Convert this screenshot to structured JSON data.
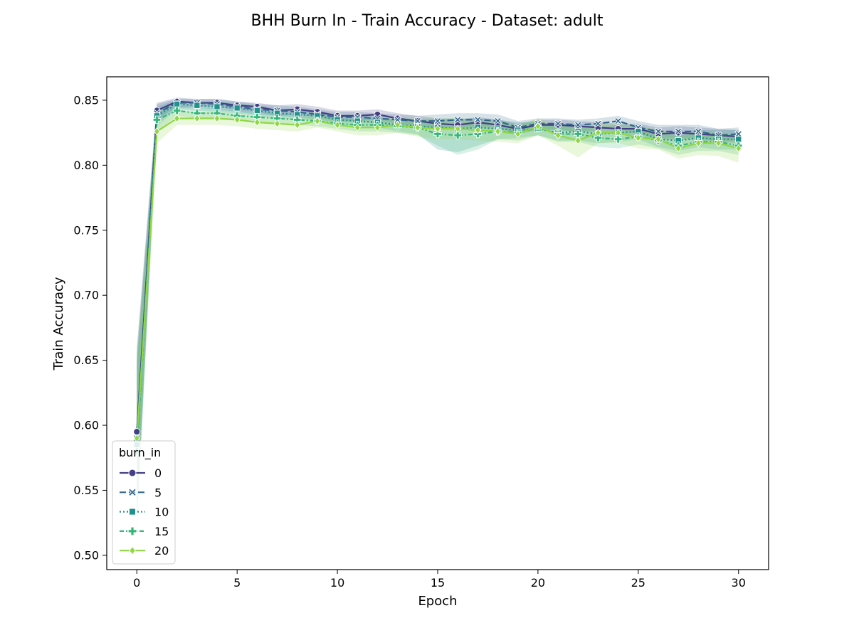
{
  "chart_data": {
    "type": "line",
    "title": "BHH Burn In - Train Accuracy - Dataset: adult",
    "xlabel": "Epoch",
    "ylabel": "Train Accuracy",
    "xlim": [
      -1.5,
      31.5
    ],
    "ylim": [
      0.489,
      0.868
    ],
    "xticks": [
      0,
      5,
      10,
      15,
      20,
      25,
      30
    ],
    "yticks": [
      0.5,
      0.55,
      0.6,
      0.65,
      0.7,
      0.75,
      0.8,
      0.85
    ],
    "grid": false,
    "legend": {
      "title": "burn_in",
      "placement": "lower-left"
    },
    "x": [
      0,
      1,
      2,
      3,
      4,
      5,
      6,
      7,
      8,
      9,
      10,
      11,
      12,
      13,
      14,
      15,
      16,
      17,
      18,
      19,
      20,
      21,
      22,
      23,
      24,
      25,
      26,
      27,
      28,
      29,
      30
    ],
    "series": [
      {
        "name": "0",
        "color": "#433f84",
        "dash": "",
        "marker": "circle",
        "values": [
          0.595,
          0.842,
          0.849,
          0.848,
          0.848,
          0.846,
          0.845,
          0.842,
          0.843,
          0.841,
          0.838,
          0.838,
          0.839,
          0.836,
          0.834,
          0.832,
          0.831,
          0.833,
          0.831,
          0.828,
          0.831,
          0.831,
          0.83,
          0.829,
          0.828,
          0.828,
          0.824,
          0.825,
          0.824,
          0.823,
          0.822
        ],
        "lower": [
          0.53,
          0.835,
          0.845,
          0.845,
          0.845,
          0.842,
          0.841,
          0.838,
          0.839,
          0.837,
          0.834,
          0.834,
          0.835,
          0.832,
          0.83,
          0.828,
          0.827,
          0.829,
          0.827,
          0.824,
          0.827,
          0.827,
          0.826,
          0.825,
          0.824,
          0.823,
          0.819,
          0.82,
          0.819,
          0.818,
          0.817
        ],
        "upper": [
          0.66,
          0.848,
          0.852,
          0.851,
          0.851,
          0.849,
          0.848,
          0.846,
          0.847,
          0.845,
          0.842,
          0.842,
          0.843,
          0.84,
          0.838,
          0.836,
          0.835,
          0.837,
          0.835,
          0.832,
          0.835,
          0.835,
          0.834,
          0.833,
          0.832,
          0.832,
          0.829,
          0.83,
          0.829,
          0.828,
          0.827
        ]
      },
      {
        "name": "5",
        "color": "#30678d",
        "dash": "9,4",
        "marker": "x",
        "values": [
          0.59,
          0.84,
          0.848,
          0.848,
          0.847,
          0.845,
          0.843,
          0.842,
          0.841,
          0.839,
          0.837,
          0.837,
          0.836,
          0.835,
          0.834,
          0.834,
          0.835,
          0.835,
          0.834,
          0.829,
          0.832,
          0.832,
          0.831,
          0.832,
          0.834,
          0.829,
          0.826,
          0.826,
          0.826,
          0.823,
          0.824
        ],
        "lower": [
          0.53,
          0.832,
          0.844,
          0.844,
          0.843,
          0.841,
          0.839,
          0.838,
          0.837,
          0.835,
          0.833,
          0.833,
          0.832,
          0.83,
          0.829,
          0.829,
          0.829,
          0.83,
          0.829,
          0.824,
          0.828,
          0.827,
          0.826,
          0.827,
          0.828,
          0.824,
          0.821,
          0.821,
          0.821,
          0.818,
          0.819
        ],
        "upper": [
          0.655,
          0.847,
          0.851,
          0.851,
          0.851,
          0.849,
          0.847,
          0.846,
          0.845,
          0.843,
          0.841,
          0.841,
          0.84,
          0.839,
          0.838,
          0.839,
          0.84,
          0.84,
          0.839,
          0.834,
          0.836,
          0.836,
          0.835,
          0.836,
          0.838,
          0.834,
          0.831,
          0.831,
          0.831,
          0.828,
          0.829
        ]
      },
      {
        "name": "10",
        "color": "#21918c",
        "dash": "2,3",
        "marker": "square",
        "values": [
          0.585,
          0.838,
          0.847,
          0.846,
          0.845,
          0.844,
          0.842,
          0.84,
          0.839,
          0.838,
          0.835,
          0.834,
          0.833,
          0.831,
          0.83,
          0.829,
          0.828,
          0.829,
          0.828,
          0.827,
          0.828,
          0.825,
          0.826,
          0.824,
          0.825,
          0.826,
          0.82,
          0.819,
          0.821,
          0.82,
          0.82
        ],
        "lower": [
          0.52,
          0.83,
          0.843,
          0.842,
          0.841,
          0.84,
          0.838,
          0.836,
          0.835,
          0.834,
          0.831,
          0.83,
          0.829,
          0.826,
          0.824,
          0.812,
          0.81,
          0.815,
          0.82,
          0.821,
          0.823,
          0.819,
          0.819,
          0.817,
          0.818,
          0.82,
          0.814,
          0.811,
          0.814,
          0.812,
          0.812
        ],
        "upper": [
          0.65,
          0.845,
          0.85,
          0.849,
          0.849,
          0.848,
          0.846,
          0.844,
          0.843,
          0.842,
          0.839,
          0.838,
          0.837,
          0.835,
          0.835,
          0.836,
          0.836,
          0.836,
          0.835,
          0.833,
          0.833,
          0.831,
          0.832,
          0.83,
          0.831,
          0.831,
          0.826,
          0.826,
          0.827,
          0.827,
          0.827
        ]
      },
      {
        "name": "15",
        "color": "#35b779",
        "dash": "6,3,2,3",
        "marker": "plus",
        "values": [
          0.58,
          0.835,
          0.842,
          0.84,
          0.84,
          0.838,
          0.837,
          0.836,
          0.835,
          0.834,
          0.832,
          0.831,
          0.831,
          0.83,
          0.829,
          0.824,
          0.823,
          0.824,
          0.826,
          0.825,
          0.829,
          0.824,
          0.824,
          0.821,
          0.82,
          0.822,
          0.819,
          0.815,
          0.818,
          0.818,
          0.815
        ],
        "lower": [
          0.52,
          0.826,
          0.838,
          0.836,
          0.836,
          0.834,
          0.833,
          0.832,
          0.831,
          0.83,
          0.828,
          0.826,
          0.826,
          0.825,
          0.823,
          0.815,
          0.808,
          0.812,
          0.82,
          0.819,
          0.823,
          0.818,
          0.818,
          0.814,
          0.813,
          0.816,
          0.813,
          0.808,
          0.811,
          0.811,
          0.808
        ],
        "upper": [
          0.645,
          0.842,
          0.846,
          0.844,
          0.844,
          0.842,
          0.841,
          0.84,
          0.839,
          0.838,
          0.836,
          0.836,
          0.836,
          0.835,
          0.834,
          0.832,
          0.831,
          0.832,
          0.832,
          0.831,
          0.834,
          0.83,
          0.83,
          0.827,
          0.827,
          0.828,
          0.825,
          0.822,
          0.825,
          0.825,
          0.822
        ]
      },
      {
        "name": "20",
        "color": "#8fd744",
        "dash": "",
        "marker": "diamond",
        "values": [
          0.59,
          0.826,
          0.836,
          0.836,
          0.836,
          0.835,
          0.833,
          0.832,
          0.831,
          0.834,
          0.831,
          0.829,
          0.829,
          0.831,
          0.829,
          0.828,
          0.828,
          0.827,
          0.826,
          0.824,
          0.83,
          0.823,
          0.819,
          0.825,
          0.825,
          0.821,
          0.82,
          0.813,
          0.817,
          0.817,
          0.813
        ],
        "lower": [
          0.53,
          0.817,
          0.831,
          0.831,
          0.831,
          0.83,
          0.828,
          0.827,
          0.826,
          0.829,
          0.826,
          0.823,
          0.823,
          0.825,
          0.822,
          0.82,
          0.82,
          0.819,
          0.818,
          0.817,
          0.823,
          0.815,
          0.806,
          0.817,
          0.817,
          0.813,
          0.812,
          0.805,
          0.808,
          0.807,
          0.802
        ],
        "upper": [
          0.65,
          0.834,
          0.841,
          0.841,
          0.841,
          0.84,
          0.838,
          0.837,
          0.836,
          0.839,
          0.836,
          0.835,
          0.835,
          0.837,
          0.836,
          0.836,
          0.836,
          0.835,
          0.834,
          0.831,
          0.836,
          0.831,
          0.829,
          0.832,
          0.832,
          0.829,
          0.828,
          0.822,
          0.826,
          0.826,
          0.823
        ]
      }
    ]
  }
}
